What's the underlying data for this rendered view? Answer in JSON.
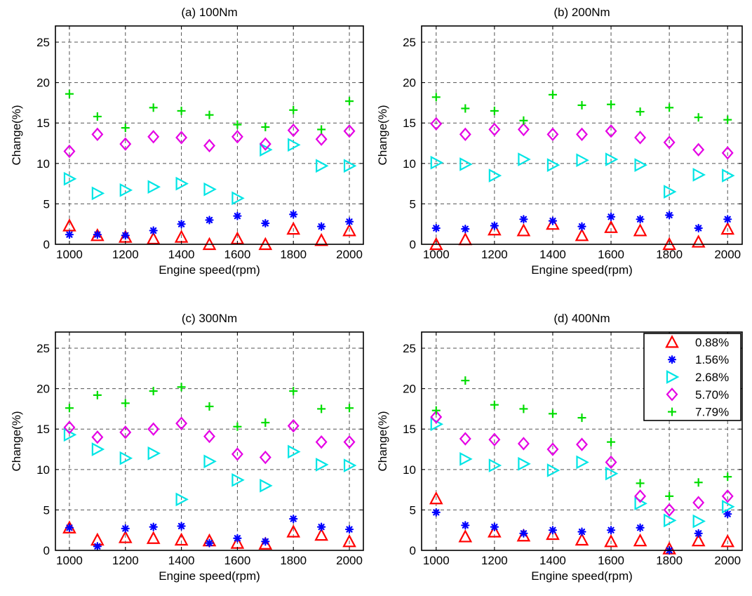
{
  "chart_data": [
    {
      "type": "scatter",
      "title": "(a) 100Nm",
      "xlabel": "Engine speed(rpm)",
      "ylabel": "Change(%)",
      "xlim": [
        950,
        2050
      ],
      "ylim": [
        0,
        27
      ],
      "xticks": [
        1000,
        1200,
        1400,
        1600,
        1800,
        2000
      ],
      "yticks": [
        0,
        5,
        10,
        15,
        20,
        25
      ],
      "grid": true,
      "x": [
        1000,
        1100,
        1200,
        1300,
        1400,
        1500,
        1600,
        1700,
        1800,
        1900,
        2000
      ],
      "series": [
        {
          "name": "0.88%",
          "values": [
            2.3,
            1.1,
            0.9,
            0.7,
            0.9,
            0.0,
            0.7,
            0.0,
            1.9,
            0.5,
            1.7
          ]
        },
        {
          "name": "1.56%",
          "values": [
            1.2,
            1.2,
            1.1,
            1.7,
            2.5,
            3.0,
            3.5,
            2.6,
            3.7,
            2.2,
            2.8
          ]
        },
        {
          "name": "2.68%",
          "values": [
            8.1,
            6.3,
            6.7,
            7.1,
            7.5,
            6.8,
            5.7,
            11.7,
            12.3,
            9.7,
            9.7
          ]
        },
        {
          "name": "5.70%",
          "values": [
            11.5,
            13.6,
            12.4,
            13.3,
            13.2,
            12.2,
            13.3,
            12.4,
            14.1,
            13.0,
            14.0
          ]
        },
        {
          "name": "7.79%",
          "values": [
            18.6,
            15.8,
            14.4,
            16.9,
            16.5,
            16.0,
            14.8,
            14.5,
            16.6,
            14.2,
            17.7
          ]
        }
      ]
    },
    {
      "type": "scatter",
      "title": "(b) 200Nm",
      "xlabel": "Engine speed(rpm)",
      "ylabel": "Change(%)",
      "xlim": [
        950,
        2050
      ],
      "ylim": [
        0,
        27
      ],
      "xticks": [
        1000,
        1200,
        1400,
        1600,
        1800,
        2000
      ],
      "yticks": [
        0,
        5,
        10,
        15,
        20,
        25
      ],
      "grid": true,
      "x": [
        1000,
        1100,
        1200,
        1300,
        1400,
        1500,
        1600,
        1700,
        1800,
        1900,
        2000
      ],
      "series": [
        {
          "name": "0.88%",
          "values": [
            0.0,
            0.6,
            1.8,
            1.7,
            2.5,
            1.1,
            2.1,
            1.7,
            0.0,
            0.3,
            1.9
          ]
        },
        {
          "name": "1.56%",
          "values": [
            2.0,
            1.9,
            2.3,
            3.1,
            2.9,
            2.2,
            3.4,
            3.1,
            3.6,
            2.0,
            3.1
          ]
        },
        {
          "name": "2.68%",
          "values": [
            10.1,
            9.9,
            8.5,
            10.5,
            9.8,
            10.4,
            10.5,
            9.8,
            6.5,
            8.6,
            8.5
          ]
        },
        {
          "name": "5.70%",
          "values": [
            14.9,
            13.6,
            14.2,
            14.2,
            13.6,
            13.6,
            14.0,
            13.2,
            12.6,
            11.7,
            11.3
          ]
        },
        {
          "name": "7.79%",
          "values": [
            18.2,
            16.8,
            16.5,
            15.3,
            18.5,
            17.2,
            17.3,
            16.4,
            16.9,
            15.7,
            15.4
          ]
        }
      ]
    },
    {
      "type": "scatter",
      "title": "(c) 300Nm",
      "xlabel": "Engine speed(rpm)",
      "ylabel": "Change(%)",
      "xlim": [
        950,
        2050
      ],
      "ylim": [
        0,
        27
      ],
      "xticks": [
        1000,
        1200,
        1400,
        1600,
        1800,
        2000
      ],
      "yticks": [
        0,
        5,
        10,
        15,
        20,
        25
      ],
      "grid": true,
      "x": [
        1000,
        1100,
        1200,
        1300,
        1400,
        1500,
        1600,
        1700,
        1800,
        1900,
        2000
      ],
      "series": [
        {
          "name": "0.88%",
          "values": [
            2.8,
            1.3,
            1.6,
            1.5,
            1.3,
            1.2,
            0.9,
            0.8,
            2.3,
            1.9,
            1.1
          ]
        },
        {
          "name": "1.56%",
          "values": [
            2.8,
            0.5,
            2.7,
            2.9,
            3.0,
            0.9,
            1.5,
            1.1,
            3.9,
            2.9,
            2.6
          ]
        },
        {
          "name": "2.68%",
          "values": [
            14.3,
            12.5,
            11.4,
            12.0,
            6.3,
            11.0,
            8.7,
            8.0,
            12.2,
            10.6,
            10.5
          ]
        },
        {
          "name": "5.70%",
          "values": [
            15.2,
            14.0,
            14.6,
            15.0,
            15.7,
            14.1,
            11.9,
            11.5,
            15.4,
            13.4,
            13.4
          ]
        },
        {
          "name": "7.79%",
          "values": [
            17.6,
            19.2,
            18.2,
            19.7,
            20.2,
            17.8,
            15.3,
            15.8,
            19.7,
            17.5,
            17.6
          ]
        }
      ]
    },
    {
      "type": "scatter",
      "title": "(d) 400Nm",
      "xlabel": "Engine speed(rpm)",
      "ylabel": "Change(%)",
      "xlim": [
        950,
        2050
      ],
      "ylim": [
        0,
        27
      ],
      "xticks": [
        1000,
        1200,
        1400,
        1600,
        1800,
        2000
      ],
      "yticks": [
        0,
        5,
        10,
        15,
        20,
        25
      ],
      "grid": true,
      "legend": "top-right",
      "x": [
        1000,
        1100,
        1200,
        1300,
        1400,
        1500,
        1600,
        1700,
        1800,
        1900,
        2000
      ],
      "series": [
        {
          "name": "0.88%",
          "values": [
            6.4,
            1.7,
            2.3,
            1.8,
            2.0,
            1.3,
            1.1,
            1.2,
            0.2,
            1.2,
            1.1
          ]
        },
        {
          "name": "1.56%",
          "values": [
            4.7,
            3.1,
            2.9,
            2.1,
            2.5,
            2.3,
            2.5,
            2.8,
            0.0,
            2.1,
            4.5
          ]
        },
        {
          "name": "2.68%",
          "values": [
            15.6,
            11.3,
            10.5,
            10.7,
            9.9,
            10.9,
            9.5,
            5.8,
            3.7,
            3.6,
            5.4
          ]
        },
        {
          "name": "5.70%",
          "values": [
            16.5,
            13.8,
            13.7,
            13.2,
            12.5,
            13.1,
            10.9,
            6.7,
            5.0,
            5.9,
            6.7
          ]
        },
        {
          "name": "7.79%",
          "values": [
            17.3,
            21.0,
            18.0,
            17.5,
            16.9,
            16.4,
            13.4,
            8.3,
            6.7,
            8.4,
            9.1
          ]
        }
      ]
    }
  ],
  "legend_entries": [
    "0.88%",
    "1.56%",
    "2.68%",
    "5.70%",
    "7.79%"
  ],
  "series_style": {
    "colors": [
      "#ff0000",
      "#0000ff",
      "#00e5e5",
      "#e500e5",
      "#00dd00"
    ],
    "markers": [
      "triangle-up-icon",
      "star-icon",
      "triangle-right-icon",
      "diamond-icon",
      "plus-icon"
    ]
  }
}
